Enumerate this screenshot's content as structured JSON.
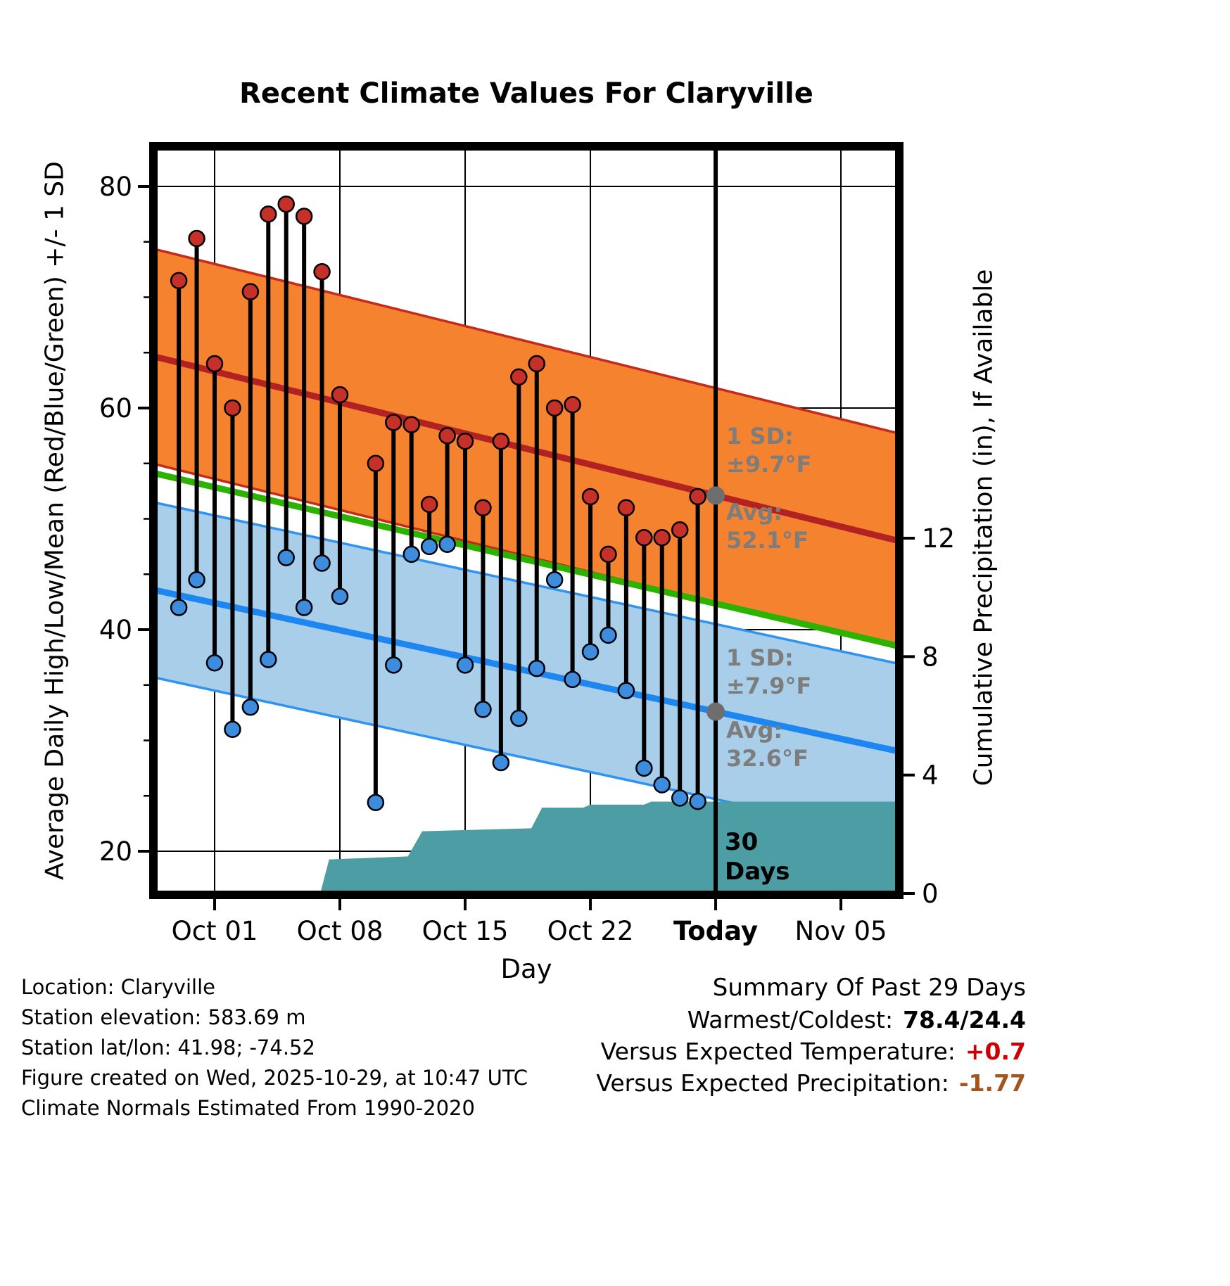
{
  "chart_data": {
    "type": "line",
    "subtype": "daily high/low temperature range dots with climatology bands and cumulative precipitation area",
    "title": "Recent Climate Values For Claryville",
    "xlabel": "Day",
    "ylabel_left": "Average Daily High/Low/Mean (Red/Blue/Green) +/- 1 SD",
    "ylabel_right": "Cumulative Precipitation (in), If Available",
    "temp_ticks": [
      20,
      40,
      60,
      80
    ],
    "temp_axis_range": [
      16,
      84
    ],
    "precip_ticks": [
      0,
      4,
      8,
      12
    ],
    "x_ticks": [
      {
        "label": "Oct 01",
        "day": 0,
        "bold": false
      },
      {
        "label": "Oct 08",
        "day": 7,
        "bold": false
      },
      {
        "label": "Oct 15",
        "day": 14,
        "bold": false
      },
      {
        "label": "Oct 22",
        "day": 21,
        "bold": false
      },
      {
        "label": "Today",
        "day": 28,
        "bold": true
      },
      {
        "label": "Nov 05",
        "day": 35,
        "bold": false
      }
    ],
    "today_day_index": 28,
    "daily": {
      "dates": [
        "Sep 29",
        "Sep 30",
        "Oct 01",
        "Oct 02",
        "Oct 03",
        "Oct 04",
        "Oct 05",
        "Oct 06",
        "Oct 07",
        "Oct 08",
        "Oct 09",
        "Oct 10",
        "Oct 11",
        "Oct 12",
        "Oct 13",
        "Oct 14",
        "Oct 15",
        "Oct 16",
        "Oct 17",
        "Oct 18",
        "Oct 19",
        "Oct 20",
        "Oct 21",
        "Oct 22",
        "Oct 23",
        "Oct 24",
        "Oct 25",
        "Oct 26",
        "Oct 27",
        "Oct 28"
      ],
      "day_index": [
        -2,
        -1,
        0,
        1,
        2,
        3,
        4,
        5,
        6,
        7,
        8,
        9,
        10,
        11,
        12,
        13,
        14,
        15,
        16,
        17,
        18,
        19,
        20,
        21,
        22,
        23,
        24,
        25,
        26,
        27
      ],
      "highs": [
        71.5,
        75.3,
        64.0,
        60.0,
        70.5,
        77.5,
        78.4,
        77.3,
        72.3,
        61.2,
        null,
        55.0,
        58.7,
        58.5,
        51.3,
        57.5,
        57.0,
        51.0,
        57.0,
        62.8,
        64.0,
        60.0,
        60.3,
        52.0,
        46.8,
        51.0,
        48.3,
        48.3,
        49.0,
        52.0
      ],
      "lows": [
        42.0,
        44.5,
        37.0,
        31.0,
        33.0,
        37.3,
        46.5,
        42.0,
        46.0,
        43.0,
        null,
        24.4,
        36.8,
        46.8,
        47.5,
        47.7,
        36.8,
        32.8,
        28.0,
        32.0,
        36.5,
        44.5,
        35.5,
        38.0,
        39.5,
        34.5,
        27.5,
        26.0,
        24.8,
        24.5
      ]
    },
    "climatology": {
      "avg_high_today": 52.1,
      "high_sd": 9.7,
      "avg_low_today": 32.6,
      "low_sd": 7.9,
      "high_slope_per_day": 0.4,
      "low_slope_per_day": 0.35
    },
    "precip_cumulative_steps": [
      [
        5.9,
        0
      ],
      [
        6.4,
        1.15
      ],
      [
        10.8,
        1.25
      ],
      [
        11.6,
        2.1
      ],
      [
        17.7,
        2.2
      ],
      [
        18.3,
        2.9
      ],
      [
        20.6,
        2.9
      ],
      [
        21.0,
        3.0
      ],
      [
        24.0,
        3.0
      ],
      [
        24.4,
        3.1
      ],
      [
        38.3,
        3.1
      ]
    ],
    "annotations": {
      "high_sd_label": "1 SD:",
      "high_sd_value": "±9.7°F",
      "high_avg_label": "Avg:",
      "high_avg_value": "52.1°F",
      "low_sd_label": "1 SD:",
      "low_sd_value": "±7.9°F",
      "low_avg_label": "Avg:",
      "low_avg_value": "32.6°F",
      "window_label_line1": "30",
      "window_label_line2": "Days"
    },
    "colors": {
      "high_band": "#F5822F",
      "high_edge": "#C62A1B",
      "high_line": "#B22222",
      "low_band": "#A8CEEA",
      "low_edge": "#2F93F0",
      "low_line": "#1E86F0",
      "mean_line": "#2DB200",
      "precip": "#4D9EA4",
      "stem": "#000000",
      "high_dot": "#C53028",
      "low_dot": "#3E8CDE",
      "avg_dot": "#6E6E6E"
    }
  },
  "footer_left": {
    "lines": [
      "Location: Claryville",
      "Station elevation: 583.69 m",
      "Station lat/lon: 41.98; -74.52",
      "Figure created on Wed, 2025-10-29, at 10:47 UTC",
      "Climate Normals Estimated From 1990-2020"
    ]
  },
  "summary": {
    "title": "Summary Of Past 29 Days",
    "rows": [
      {
        "label": "Warmest/Coldest:",
        "value": "78.4/24.4",
        "value_color": "#000000"
      },
      {
        "label": "Versus Expected Temperature:",
        "value": "+0.7",
        "value_color": "#CC0000"
      },
      {
        "label": "Versus Expected Precipitation:",
        "value": "-1.77",
        "value_color": "#A4551E"
      }
    ]
  }
}
